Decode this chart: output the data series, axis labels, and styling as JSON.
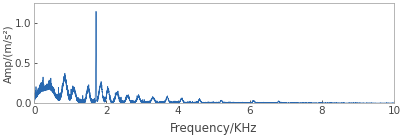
{
  "xlabel": "Frequency/KHz",
  "ylabel": "Amp/(m/s²)",
  "xlim": [
    0,
    10
  ],
  "ylim": [
    0,
    1.25
  ],
  "yticks": [
    0,
    0.5,
    1
  ],
  "xticks": [
    0,
    2,
    4,
    6,
    8,
    10
  ],
  "line_color": "#2868b0",
  "background_color": "#ffffff",
  "peak_freq": 1.72,
  "peak_amp": 1.13,
  "noise_seed": 12,
  "xlabel_fontsize": 8.5,
  "ylabel_fontsize": 7.5,
  "tick_fontsize": 7.5
}
